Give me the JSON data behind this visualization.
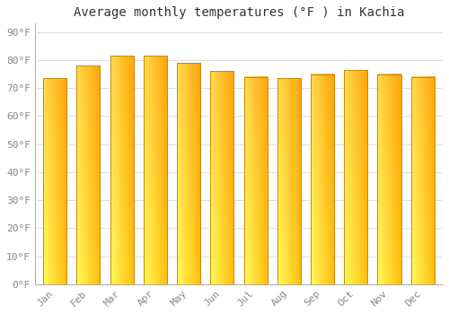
{
  "title": "Average monthly temperatures (°F ) in Kachia",
  "months": [
    "Jan",
    "Feb",
    "Mar",
    "Apr",
    "May",
    "Jun",
    "Jul",
    "Aug",
    "Sep",
    "Oct",
    "Nov",
    "Dec"
  ],
  "values": [
    73.5,
    78.0,
    81.5,
    81.5,
    79.0,
    76.0,
    74.0,
    73.5,
    75.0,
    76.5,
    75.0,
    74.0
  ],
  "bar_color_main": "#FFA500",
  "bar_color_light": "#FFD070",
  "bar_edge_color": "#CC8800",
  "background_color": "#FFFFFF",
  "plot_bg_color": "#FFFFFF",
  "ytick_labels": [
    "0°F",
    "10°F",
    "20°F",
    "30°F",
    "40°F",
    "50°F",
    "60°F",
    "70°F",
    "80°F",
    "90°F"
  ],
  "ytick_values": [
    0,
    10,
    20,
    30,
    40,
    50,
    60,
    70,
    80,
    90
  ],
  "ylim": [
    0,
    93
  ],
  "grid_color": "#DDDDDD",
  "title_fontsize": 10,
  "tick_fontsize": 8,
  "font_family": "monospace"
}
